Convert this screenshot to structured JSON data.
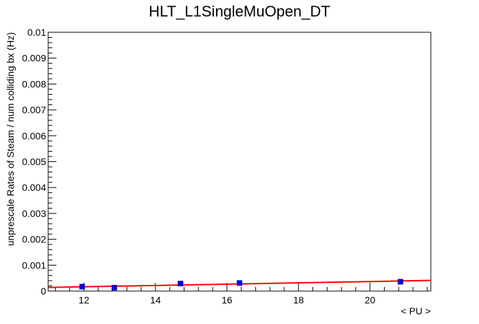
{
  "chart_data": {
    "type": "scatter",
    "title": "HLT_L1SingleMuOpen_DT",
    "xlabel": "< PU >",
    "ylabel": "unprescale Rates of Steam / num colliding bx (Hz)",
    "xlim": [
      11.0,
      21.7
    ],
    "ylim": [
      0,
      0.01
    ],
    "x_ticks": [
      12,
      14,
      16,
      18,
      20
    ],
    "y_ticks": [
      0,
      0.001,
      0.002,
      0.003,
      0.004,
      0.005,
      0.006,
      0.007,
      0.008,
      0.009,
      0.01
    ],
    "y_tick_labels": [
      "0",
      "0.001",
      "0.002",
      "0.003",
      "0.004",
      "0.005",
      "0.006",
      "0.007",
      "0.008",
      "0.009",
      "0.01"
    ],
    "grid": false,
    "series": [
      {
        "color": "#0000cc",
        "marker": "square",
        "x": [
          11.95,
          12.85,
          14.7,
          16.35,
          20.85
        ],
        "y": [
          0.00017,
          0.00013,
          0.00029,
          0.00031,
          0.00036
        ]
      }
    ],
    "fit": {
      "type": "line",
      "color": "#ff0000",
      "x": [
        11.0,
        21.7
      ],
      "y": [
        0.00014,
        0.00041
      ]
    }
  }
}
